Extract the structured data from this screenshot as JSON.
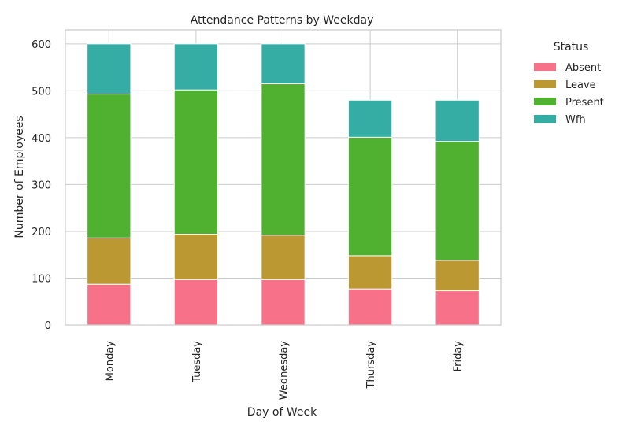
{
  "chart_data": {
    "type": "bar",
    "stacked": true,
    "title": "Attendance Patterns by Weekday",
    "xlabel": "Day of Week",
    "ylabel": "Number of Employees",
    "categories": [
      "Monday",
      "Tuesday",
      "Wednesday",
      "Thursday",
      "Friday"
    ],
    "ylim": [
      0,
      630
    ],
    "yticks": [
      "0",
      "100",
      "200",
      "300",
      "400",
      "500",
      "600"
    ],
    "grid": true,
    "legend": {
      "title": "Status",
      "placement": "outside-right"
    },
    "series": [
      {
        "name": "Absent",
        "color": "#f77189",
        "values": [
          87,
          97,
          97,
          77,
          73
        ]
      },
      {
        "name": "Leave",
        "color": "#bb9832",
        "values": [
          99,
          97,
          95,
          71,
          65
        ]
      },
      {
        "name": "Present",
        "color": "#50b131",
        "values": [
          307,
          308,
          323,
          253,
          254
        ]
      },
      {
        "name": "Wfh",
        "color": "#36ada4",
        "values": [
          107,
          98,
          85,
          79,
          88
        ]
      }
    ]
  }
}
